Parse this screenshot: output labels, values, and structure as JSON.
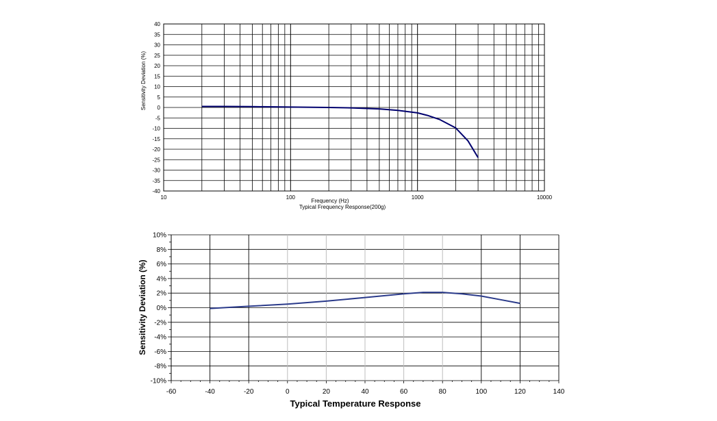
{
  "chart_data": [
    {
      "type": "line",
      "scale_x": "log",
      "title": "",
      "xlabel": "Frequency (Hz)",
      "caption": "Typical Frequency Response(200g)",
      "ylabel": "Sensitivity Deviation (%)",
      "xlim": [
        10,
        10000
      ],
      "ylim": [
        -40,
        40
      ],
      "x_ticks": [
        "10",
        "100",
        "1000",
        "10000"
      ],
      "y_ticks": [
        "40",
        "35",
        "30",
        "25",
        "20",
        "15",
        "10",
        "5",
        "0",
        "-5",
        "-10",
        "-15",
        "-20",
        "-25",
        "-30",
        "-35",
        "-40"
      ],
      "grid": true,
      "line_color": "#00006e",
      "series": [
        {
          "x": [
            20,
            30,
            50,
            100,
            200,
            300,
            500,
            700,
            1000,
            1200,
            1500,
            2000,
            2500,
            3000
          ],
          "y": [
            0.5,
            0.5,
            0.4,
            0.2,
            0,
            -0.2,
            -0.7,
            -1.4,
            -2.6,
            -3.8,
            -5.8,
            -9.8,
            -16,
            -24
          ]
        }
      ]
    },
    {
      "type": "line",
      "title": "",
      "xlabel": "Typical Temperature Response",
      "ylabel": "Sensitivity Deviation (%)",
      "xlim": [
        -60,
        140
      ],
      "ylim": [
        -10,
        10
      ],
      "x_ticks": [
        "-60",
        "-40",
        "-20",
        "0",
        "20",
        "40",
        "60",
        "80",
        "100",
        "120",
        "140"
      ],
      "y_ticks": [
        "10%",
        "8%",
        "6%",
        "4%",
        "2%",
        "0%",
        "-2%",
        "-4%",
        "-6%",
        "-8%",
        "-10%"
      ],
      "grid": true,
      "line_color": "#2a3a8a",
      "series": [
        {
          "x": [
            -40,
            -20,
            0,
            20,
            40,
            60,
            70,
            80,
            90,
            100,
            110,
            120
          ],
          "y": [
            -0.1,
            0.2,
            0.5,
            0.9,
            1.4,
            1.9,
            2.1,
            2.1,
            1.9,
            1.6,
            1.1,
            0.6
          ]
        }
      ]
    }
  ]
}
